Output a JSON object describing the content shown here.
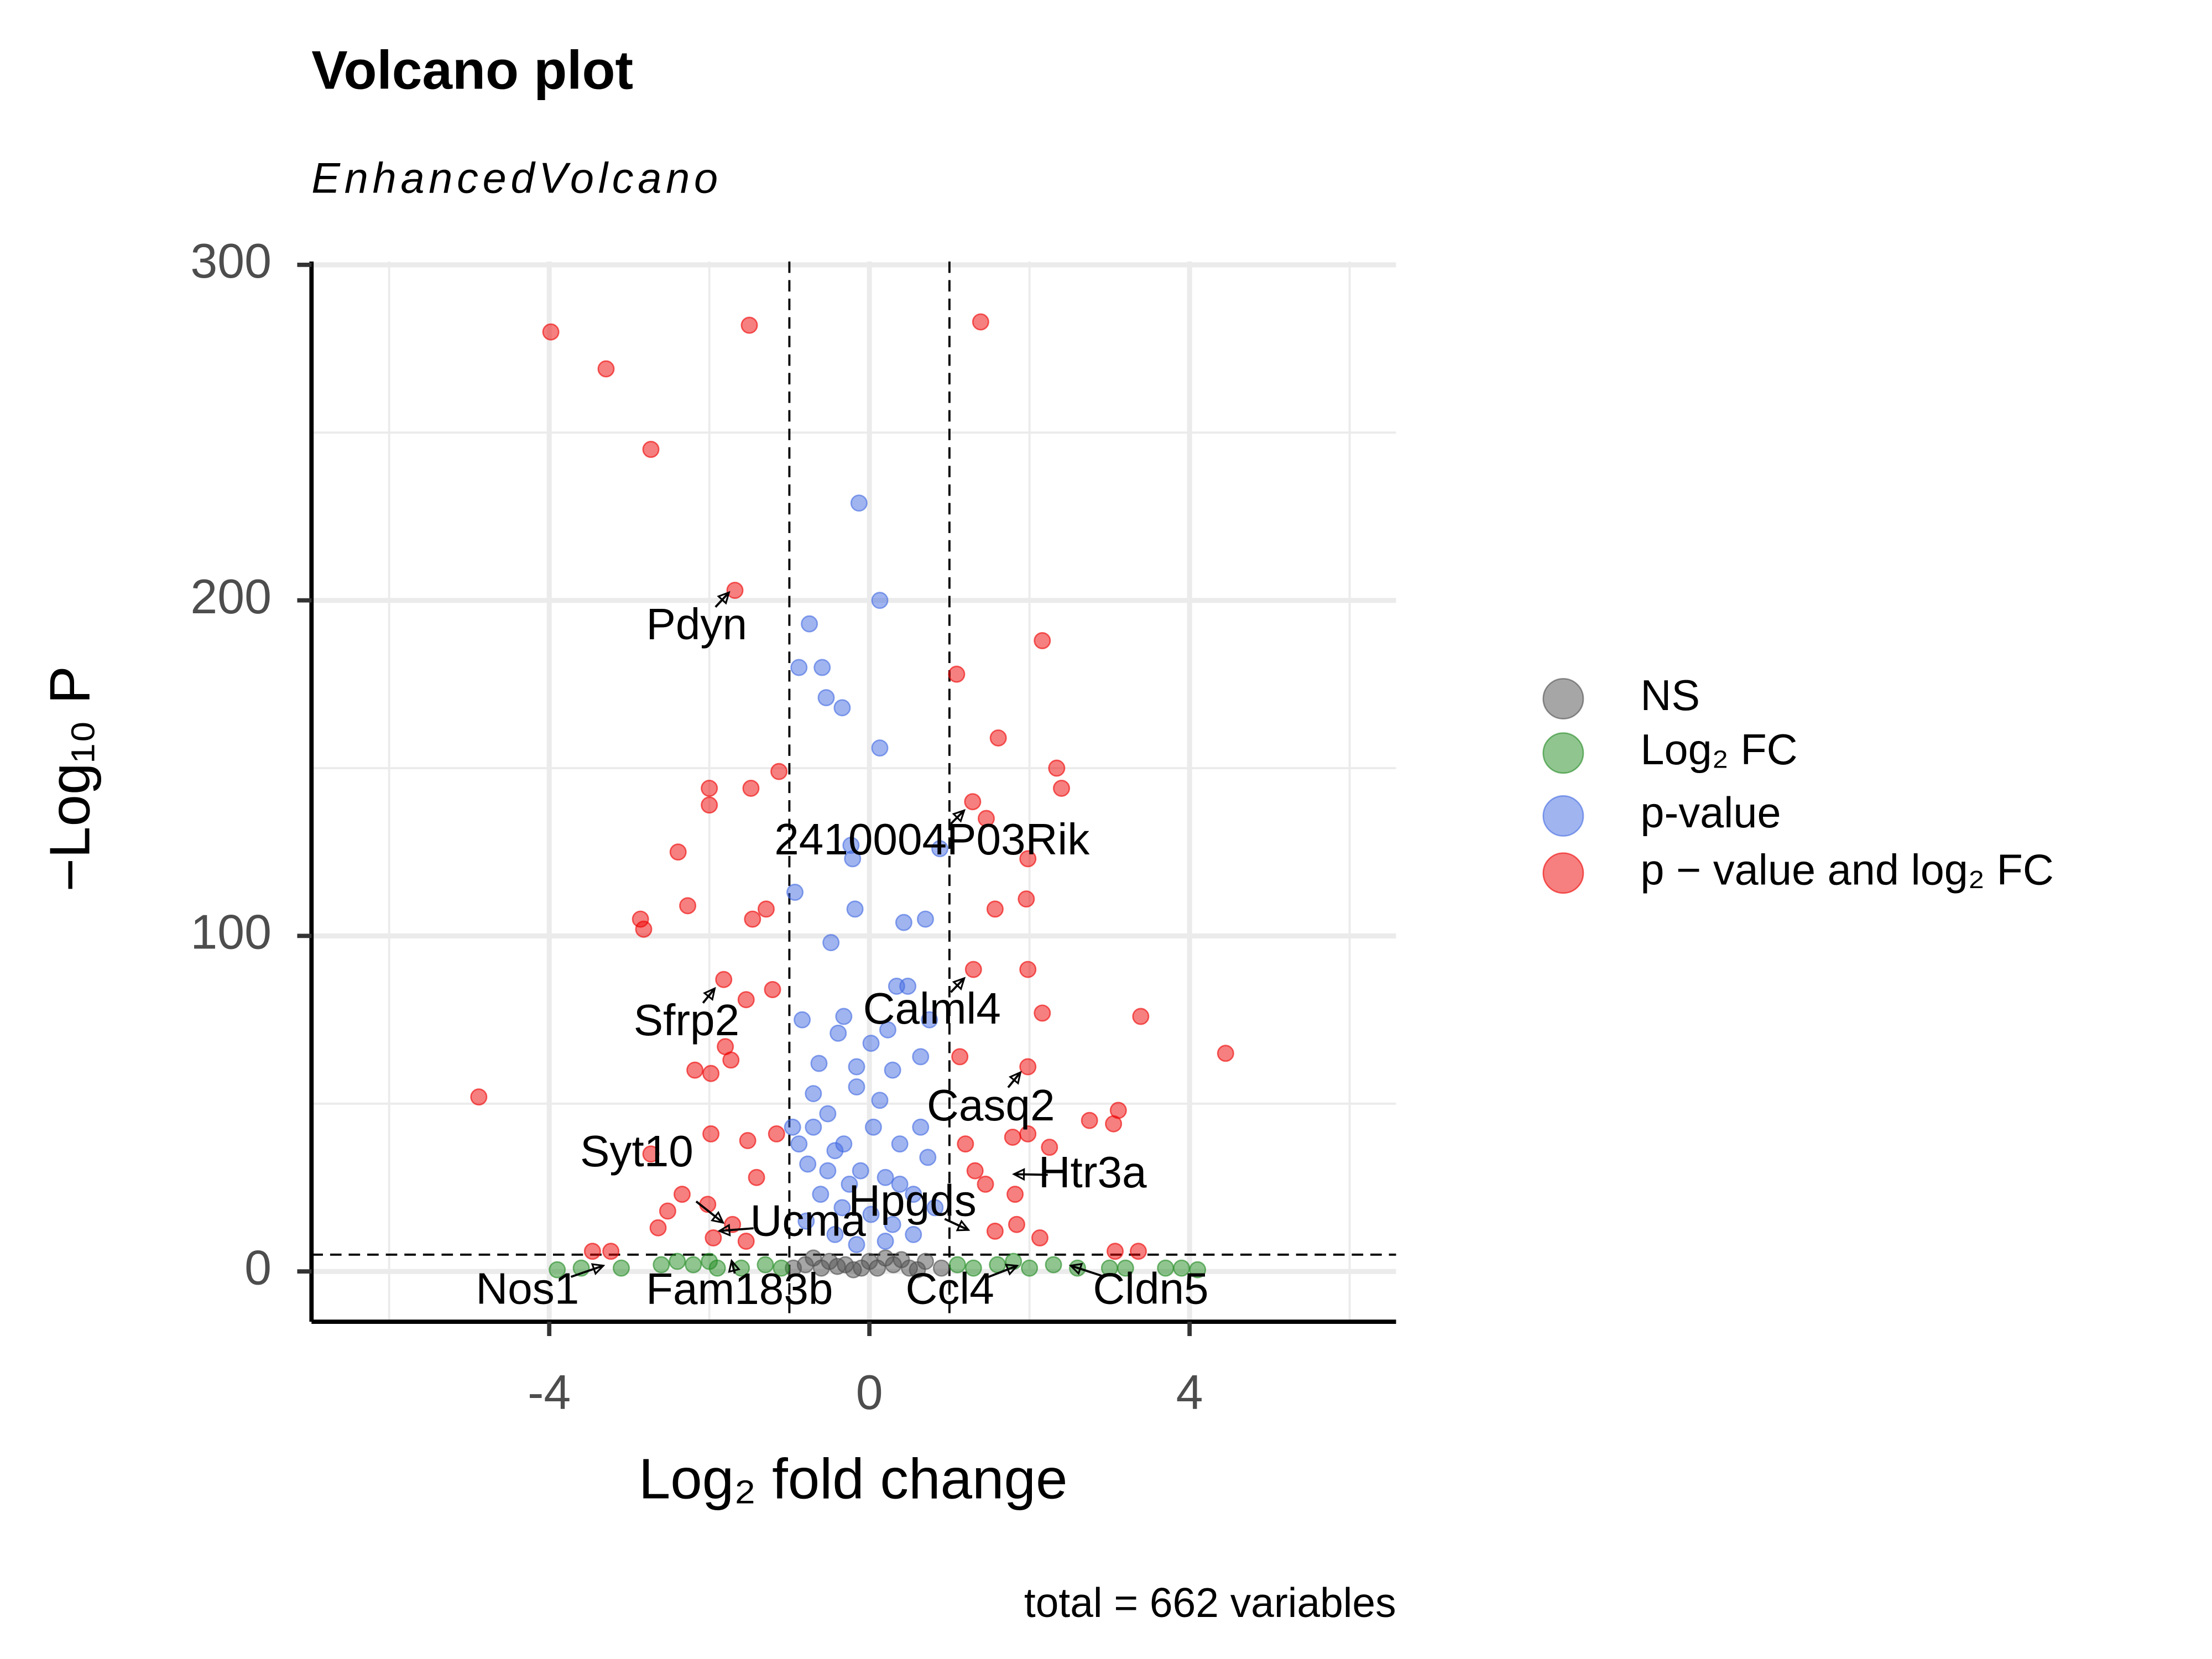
{
  "chart_data": {
    "type": "scatter",
    "title": "Volcano plot",
    "subtitle": "EnhancedVolcano",
    "xlabel": "Log₂ fold change",
    "ylabel": "−Log₁₀ P",
    "caption": "total = 662 variables",
    "xlim": [
      -6.97,
      6.58
    ],
    "ylim": [
      -15,
      301
    ],
    "xticks": [
      -4,
      0,
      4
    ],
    "yticks": [
      0,
      100,
      200,
      300
    ],
    "x_minor_grid": [
      -6,
      -2,
      2,
      6
    ],
    "y_minor_grid": [
      50,
      150,
      250
    ],
    "grid": true,
    "legend": "right",
    "vlines": [
      -1,
      1
    ],
    "hline": 5,
    "series": [
      {
        "name": "NS",
        "color": "#4d4d4d",
        "x": [
          -0.95,
          -0.8,
          -0.6,
          -0.5,
          -0.3,
          -0.1,
          0,
          0.1,
          0.3,
          0.5,
          0.7,
          0.9,
          -0.7,
          0.2,
          -0.2,
          0.6,
          0.4,
          -0.4
        ],
        "values": [
          1,
          2,
          1,
          3,
          2,
          1,
          3,
          1,
          2,
          1,
          3,
          1,
          4,
          4,
          0.5,
          0.5,
          3.5,
          1.5
        ]
      },
      {
        "name": "Log₂ FC",
        "color": "#228b22",
        "x": [
          -3.6,
          -3.1,
          -2.6,
          -2.4,
          -2.2,
          -1.9,
          -1.6,
          -1.3,
          -1.1,
          1.1,
          1.3,
          1.6,
          2.0,
          2.3,
          2.6,
          3.0,
          3.2,
          3.7,
          3.9,
          4.1,
          -3.9,
          -2.0,
          1.8
        ],
        "values": [
          1,
          1,
          2,
          3,
          2,
          1,
          1,
          2,
          1,
          2,
          1,
          2,
          1,
          2,
          1,
          1,
          1,
          1,
          1,
          0.5,
          0.5,
          3,
          3
        ]
      },
      {
        "name": "p-value",
        "color": "#4169e1",
        "x": [
          -0.13,
          0.13,
          -0.75,
          -0.88,
          -0.59,
          -0.54,
          -0.34,
          0.13,
          -0.23,
          -0.21,
          0.88,
          -0.93,
          -0.18,
          0.43,
          0.7,
          -0.48,
          0.34,
          0.48,
          -0.84,
          -0.32,
          -0.39,
          0.23,
          0.75,
          -0.63,
          -0.16,
          0.64,
          -0.7,
          0.13,
          -0.96,
          -0.52,
          -0.88,
          -0.32,
          0.38,
          0.73,
          -0.77,
          -0.11,
          0.2,
          -0.61,
          0.55,
          -0.34,
          0.02,
          0.82,
          -0.79,
          0.29,
          -0.43,
          0.55,
          -0.16,
          0.2,
          -0.52,
          -0.25,
          0.38,
          0.05,
          -0.16,
          0.29,
          0.02,
          -0.7,
          0.64,
          -0.43
        ],
        "values": [
          229,
          200,
          193,
          180,
          180,
          171,
          168,
          156,
          127,
          123,
          126,
          113,
          108,
          104,
          105,
          98,
          85,
          85,
          75,
          76,
          71,
          72,
          75,
          62,
          61,
          64,
          53,
          51,
          43,
          47,
          38,
          38,
          38,
          34,
          32,
          30,
          28,
          23,
          23,
          19,
          17,
          19,
          15,
          14,
          11,
          11,
          8,
          9,
          30,
          26,
          26,
          43,
          55,
          60,
          68,
          43,
          43,
          36
        ]
      },
      {
        "name": "p − value and log₂ FC",
        "color": "#ee0000",
        "x": [
          -3.98,
          -3.29,
          -2.73,
          -1.5,
          1.39,
          -1.68,
          2.16,
          1.09,
          1.61,
          2.34,
          2.4,
          -1.13,
          -2.0,
          -1.48,
          -2.0,
          1.29,
          1.46,
          -2.39,
          1.98,
          -2.27,
          -1.29,
          -1.46,
          -2.86,
          -2.82,
          1.57,
          1.96,
          1.3,
          1.98,
          -1.82,
          -1.21,
          -1.54,
          2.16,
          3.39,
          4.45,
          -4.88,
          1.13,
          1.98,
          -2.18,
          -1.98,
          -1.73,
          -1.8,
          2.75,
          3.11,
          3.05,
          -1.16,
          -1.98,
          -1.52,
          1.2,
          1.79,
          1.98,
          2.25,
          -2.73,
          -2.34,
          -1.41,
          1.82,
          1.32,
          1.45,
          1.57,
          1.84,
          2.13,
          -2.52,
          -2.64,
          -2.02,
          -1.71,
          -1.95,
          -1.54,
          3.07,
          3.36,
          -3.46,
          -3.23
        ],
        "values": [
          280,
          269,
          245,
          282,
          283,
          203,
          188,
          178,
          159,
          150,
          144,
          149,
          144,
          144,
          139,
          140,
          135,
          125,
          123,
          109,
          108,
          105,
          105,
          102,
          108,
          111,
          90,
          90,
          87,
          84,
          81,
          77,
          76,
          65,
          52,
          64,
          61,
          60,
          59,
          63,
          67,
          45,
          48,
          44,
          41,
          41,
          39,
          38,
          40,
          41,
          37,
          35,
          23,
          28,
          23,
          30,
          26,
          12,
          14,
          10,
          18,
          13,
          20,
          14,
          10,
          9,
          6,
          6,
          6,
          6
        ]
      }
    ],
    "annotations": [
      {
        "label": "Pdyn",
        "x": -1.73,
        "y": 203
      },
      {
        "label": "2410004P03Rik",
        "x": 1.21,
        "y": 138
      },
      {
        "label": "Sfrp2",
        "x": -1.91,
        "y": 85
      },
      {
        "label": "Calml4",
        "x": 1.21,
        "y": 88
      },
      {
        "label": "Casq2",
        "x": 1.91,
        "y": 60
      },
      {
        "label": "Syt10",
        "x": -1.8,
        "y": 14
      },
      {
        "label": "Htr3a",
        "x": 1.77,
        "y": 29
      },
      {
        "label": "Ucma",
        "x": -1.91,
        "y": 12
      },
      {
        "label": "Hpgds",
        "x": 1.27,
        "y": 12
      },
      {
        "label": "Nos1",
        "x": -3.29,
        "y": 2
      },
      {
        "label": "Fam183b",
        "x": -1.73,
        "y": 4
      },
      {
        "label": "Ccl4",
        "x": 1.88,
        "y": 2
      },
      {
        "label": "Cldn5",
        "x": 2.48,
        "y": 2
      }
    ]
  }
}
